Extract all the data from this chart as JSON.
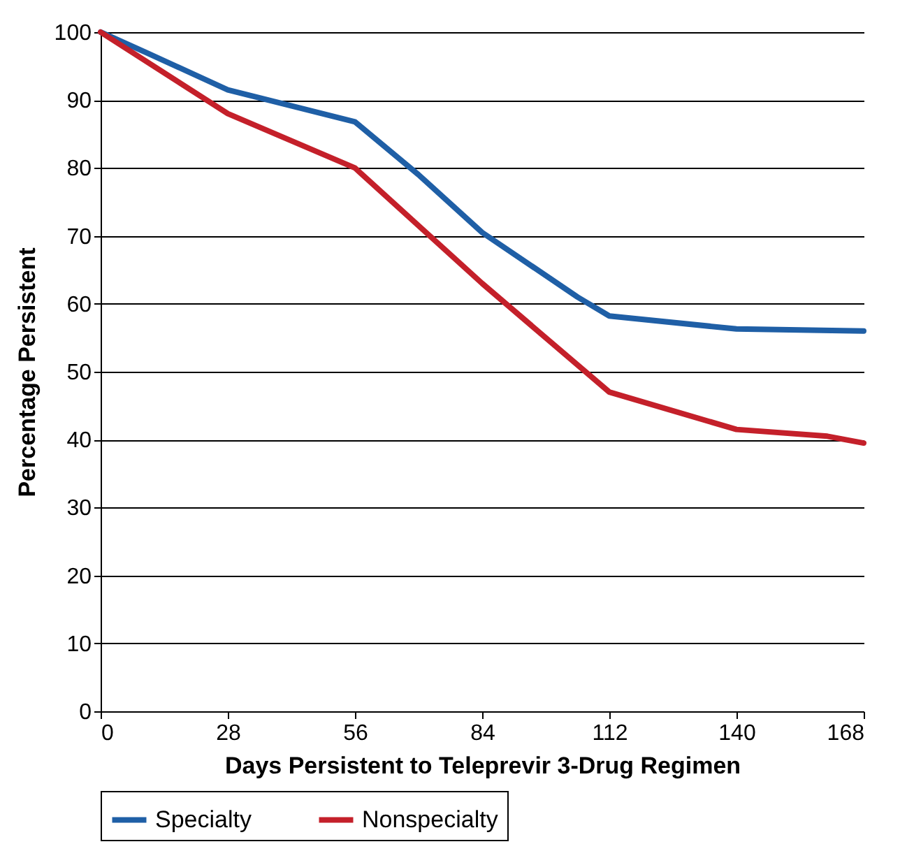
{
  "chart_data": {
    "type": "line",
    "xlabel": "Days Persistent to Teleprevir 3-Drug Regimen",
    "ylabel": "Percentage Persistent",
    "xlim": [
      0,
      168
    ],
    "xticks": [
      0,
      28,
      56,
      84,
      112,
      140,
      168
    ],
    "ylim": [
      0,
      100
    ],
    "yticks": [
      0,
      10,
      20,
      30,
      40,
      50,
      60,
      70,
      80,
      90,
      100
    ],
    "grid": "y",
    "legend": "bottom",
    "marker": "none",
    "line_style": "solid",
    "series": [
      {
        "name": "Specialty",
        "color": "#1f5fa6",
        "x": [
          0,
          10,
          28,
          56,
          70,
          84,
          105,
          112,
          140,
          168
        ],
        "values": [
          100,
          97,
          91.5,
          86.8,
          79,
          70.5,
          61,
          58.2,
          56.3,
          56
        ]
      },
      {
        "name": "Nonspecialty",
        "color": "#c4202a",
        "x": [
          0,
          28,
          56,
          84,
          112,
          140,
          160,
          168
        ],
        "values": [
          100,
          88,
          80,
          63,
          47,
          41.5,
          40.5,
          39.5
        ]
      }
    ]
  }
}
